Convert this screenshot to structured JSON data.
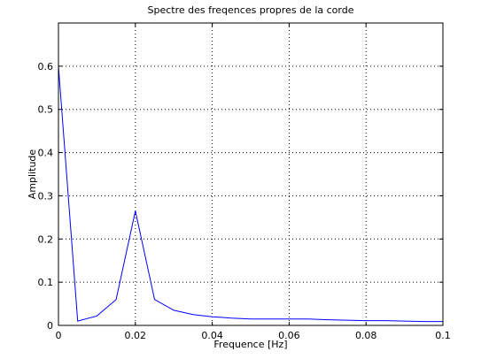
{
  "chart_data": {
    "type": "line",
    "title": "Spectre des freqences propres de la corde",
    "xlabel": "Frequence [Hz]",
    "ylabel": "Amplitude",
    "xlim": [
      0,
      0.1
    ],
    "ylim": [
      0,
      0.7
    ],
    "grid": true,
    "x_ticks": [
      0,
      0.02,
      0.04,
      0.06,
      0.08,
      0.1
    ],
    "x_tick_labels": [
      "0",
      "0.02",
      "0.04",
      "0.06",
      "0.08",
      "0.1"
    ],
    "y_ticks": [
      0,
      0.1,
      0.2,
      0.3,
      0.4,
      0.5,
      0.6
    ],
    "y_tick_labels": [
      "0",
      "0.1",
      "0.2",
      "0.3",
      "0.4",
      "0.5",
      "0.6"
    ],
    "series": [
      {
        "color": "#0000ff",
        "x": [
          0,
          0.005,
          0.01,
          0.015,
          0.02,
          0.025,
          0.03,
          0.035,
          0.04,
          0.045,
          0.05,
          0.055,
          0.06,
          0.065,
          0.07,
          0.075,
          0.08,
          0.085,
          0.09,
          0.095,
          0.1
        ],
        "y": [
          0.6,
          0.01,
          0.022,
          0.06,
          0.265,
          0.06,
          0.035,
          0.025,
          0.02,
          0.017,
          0.015,
          0.015,
          0.015,
          0.015,
          0.013,
          0.012,
          0.011,
          0.011,
          0.01,
          0.009,
          0.009
        ]
      }
    ]
  }
}
